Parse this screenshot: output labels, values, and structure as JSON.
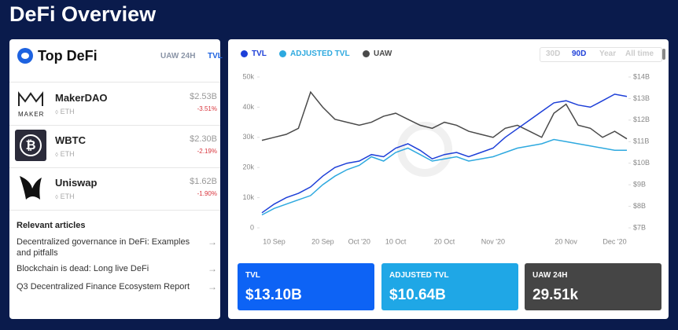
{
  "header": {
    "title": "DeFi Overview"
  },
  "top_defi": {
    "title": "Top DeFi",
    "tabs": [
      "UAW 24H",
      "TVL"
    ],
    "active_tab": 1,
    "items": [
      {
        "name": "MakerDAO",
        "logo_text": "MAKER",
        "value": "$2.53B",
        "change": "-3.51%",
        "chain": "ETH"
      },
      {
        "name": "WBTC",
        "value": "$2.30B",
        "change": "-2.19%",
        "chain": "ETH"
      },
      {
        "name": "Uniswap",
        "value": "$1.62B",
        "change": "-1.90%",
        "chain": "ETH"
      }
    ]
  },
  "articles": {
    "title": "Relevant articles",
    "items": [
      "Decentralized governance in DeFi: Examples and pitfalls",
      "Blockchain is dead: Long live DeFi",
      "Q3 Decentralized Finance Ecosystem Report"
    ]
  },
  "range_buttons": [
    "30D",
    "90D",
    "Year",
    "All time"
  ],
  "active_range": 1,
  "chart_data": {
    "type": "line",
    "categories": [
      null,
      "10 Sep",
      null,
      null,
      null,
      "20 Sep",
      null,
      null,
      "Oct '20",
      null,
      null,
      "10 Oct",
      null,
      null,
      null,
      "20 Oct",
      null,
      null,
      null,
      "Nov '20",
      null,
      null,
      null,
      null,
      null,
      "20 Nov",
      null,
      null,
      null,
      "Dec '20",
      null
    ],
    "series": [
      {
        "name": "TVL",
        "color": "#1d3fd8",
        "axis": "y2",
        "values": [
          7.7,
          8.1,
          8.4,
          8.6,
          8.9,
          9.4,
          9.8,
          10.0,
          10.1,
          10.4,
          10.3,
          10.7,
          10.9,
          10.6,
          10.2,
          10.4,
          10.5,
          10.3,
          10.5,
          10.7,
          11.2,
          11.6,
          12.0,
          12.4,
          12.8,
          12.9,
          12.7,
          12.6,
          12.9,
          13.2,
          13.1
        ]
      },
      {
        "name": "ADJUSTED TVL",
        "color": "#2ea9df",
        "axis": "y2",
        "values": [
          7.6,
          7.9,
          8.1,
          8.3,
          8.5,
          9.0,
          9.4,
          9.7,
          9.9,
          10.3,
          10.1,
          10.5,
          10.7,
          10.4,
          10.1,
          10.2,
          10.3,
          10.1,
          10.2,
          10.3,
          10.5,
          10.7,
          10.8,
          10.9,
          11.1,
          11.0,
          10.9,
          10.8,
          10.7,
          10.6,
          10.6
        ]
      },
      {
        "name": "UAW",
        "color": "#4a4a4a",
        "values": [
          29000,
          30000,
          31000,
          33000,
          45000,
          40000,
          36000,
          35000,
          34000,
          35000,
          37000,
          38000,
          36000,
          34000,
          33000,
          35000,
          34000,
          32000,
          31000,
          30000,
          33000,
          34000,
          32000,
          30000,
          38000,
          41000,
          34000,
          33000,
          30000,
          32000,
          29500
        ]
      }
    ],
    "ylim": [
      0,
      50000
    ],
    "yticks": [
      0,
      {
        "value": 10000,
        "label": "10k"
      },
      {
        "value": 20000,
        "label": "20k"
      },
      {
        "value": 30000,
        "label": "30k"
      },
      {
        "value": 40000,
        "label": "40k"
      },
      {
        "value": 50000,
        "label": "50k"
      }
    ],
    "y2lim": [
      7,
      14
    ],
    "y2ticks": [
      {
        "value": 7,
        "label": "$7B"
      },
      {
        "value": 8,
        "label": "$8B"
      },
      {
        "value": 9,
        "label": "$9B"
      },
      {
        "value": 10,
        "label": "$10B"
      },
      {
        "value": 11,
        "label": "$11B"
      },
      {
        "value": 12,
        "label": "$12B"
      },
      {
        "value": 13,
        "label": "$13B"
      },
      {
        "value": 14,
        "label": "$14B"
      }
    ],
    "grid": false
  },
  "cards": [
    {
      "label": "TVL",
      "value": "$13.10B"
    },
    {
      "label": "ADJUSTED TVL",
      "value": "$10.64B"
    },
    {
      "label": "UAW 24H",
      "value": "29.51k"
    }
  ]
}
